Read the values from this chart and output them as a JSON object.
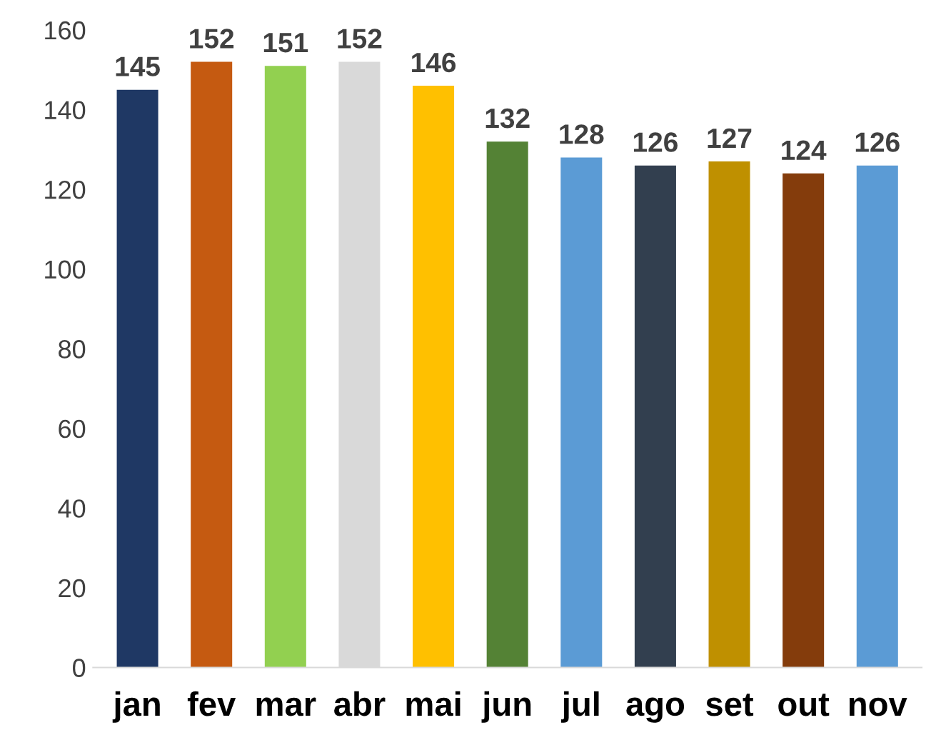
{
  "chart_data": {
    "type": "bar",
    "categories": [
      "jan",
      "fev",
      "mar",
      "abr",
      "mai",
      "jun",
      "jul",
      "ago",
      "set",
      "out",
      "nov"
    ],
    "values": [
      145,
      152,
      151,
      152,
      146,
      132,
      128,
      126,
      127,
      124,
      126
    ],
    "colors": [
      "#1f3864",
      "#c55a11",
      "#92d050",
      "#d9d9d9",
      "#ffc000",
      "#548235",
      "#5b9bd5",
      "#323f4f",
      "#bf9000",
      "#843c0c",
      "#5b9bd5"
    ],
    "ylim": [
      0,
      160
    ],
    "yticks": [
      0,
      20,
      40,
      60,
      80,
      100,
      120,
      140,
      160
    ],
    "data_labels": true,
    "grid": false,
    "legend": false
  }
}
